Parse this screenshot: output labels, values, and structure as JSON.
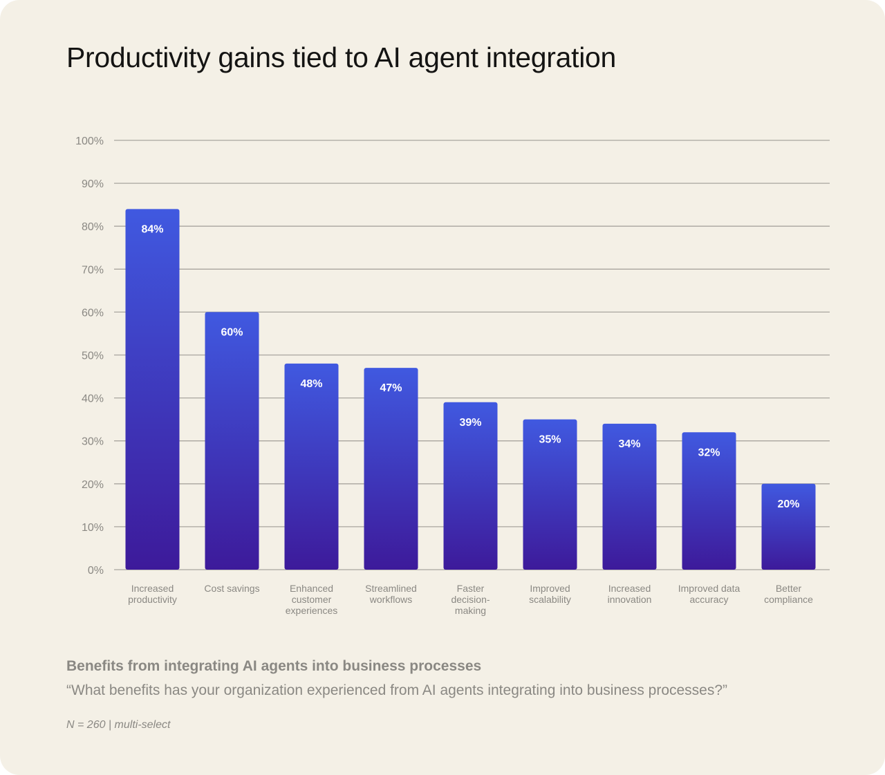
{
  "chart_data": {
    "type": "bar",
    "title": "Productivity gains tied to AI agent integration",
    "categories": [
      "Increased productivity",
      "Cost savings",
      "Enhanced customer experiences",
      "Streamlined workflows",
      "Faster decision-making",
      "Improved scalability",
      "Increased innovation",
      "Improved data accuracy",
      "Better compliance"
    ],
    "values": [
      84,
      60,
      48,
      47,
      39,
      35,
      34,
      32,
      20
    ],
    "data_labels": [
      "84%",
      "60%",
      "48%",
      "47%",
      "39%",
      "35%",
      "34%",
      "32%",
      "20%"
    ],
    "ylim": [
      0,
      100
    ],
    "yticks": [
      0,
      10,
      20,
      30,
      40,
      50,
      60,
      70,
      80,
      90,
      100
    ],
    "ytick_labels": [
      "0%",
      "10%",
      "20%",
      "30%",
      "40%",
      "50%",
      "60%",
      "70%",
      "80%",
      "90%",
      "100%"
    ],
    "grid": true,
    "bar_color_top": "#4059e0",
    "bar_color_bottom": "#3d1a9a",
    "xlabel": "",
    "ylabel": ""
  },
  "subtitle": "Benefits from integrating AI agents into business processes",
  "question": "“What benefits has your organization experienced from AI agents integrating into business processes?”",
  "note": "N = 260 | multi-select"
}
